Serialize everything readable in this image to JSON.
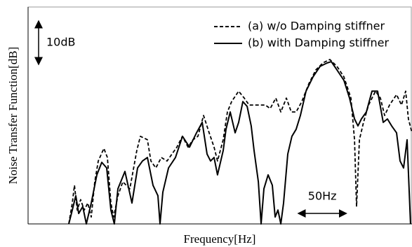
{
  "chart_data": {
    "type": "line",
    "xlabel": "Frequency[Hz]",
    "ylabel": "Noise Transfer Function[dB]",
    "xlim": [
      0,
      400
    ],
    "ylim": [
      0,
      50
    ],
    "legend": "top-right",
    "annotations": [
      {
        "text": "10dB",
        "value": 10,
        "axis": "y"
      },
      {
        "text": "50Hz",
        "value": 50,
        "axis": "x"
      }
    ],
    "series": [
      {
        "name": "(a) w/o Damping stiffner",
        "color": "#000000",
        "linestyle": "dashed",
        "x": [
          42.4,
          46.1,
          48.3,
          51.2,
          54.8,
          58.5,
          62.2,
          65.8,
          69.5,
          73.1,
          79,
          82.6,
          86.3,
          89.2,
          93.6,
          98.7,
          106,
          113.3,
          117,
          124.3,
          128,
          133.1,
          138.9,
          144.8,
          149.9,
          155,
          160.8,
          166.7,
          171.8,
          177,
          182.8,
          188.7,
          193.8,
          197.4,
          203.3,
          207.7,
          212.1,
          219.4,
          225.2,
          230.3,
          237.7,
          247.2,
          252.3,
          258.1,
          263.3,
          269.1,
          274.2,
          279.3,
          285.2,
          292.5,
          299.8,
          307.1,
          314.4,
          321.8,
          329.1,
          336.4,
          340.1,
          342.2,
          345.2,
          349.5,
          354.7,
          362,
          367.1,
          371.5,
          376.6,
          383.9,
          389,
          393.4,
          396.3,
          400
        ],
        "values": [
          0,
          4.8,
          8.9,
          3.2,
          5.6,
          3.2,
          4.8,
          1.6,
          9.7,
          14.5,
          17.4,
          15.3,
          4.8,
          1.6,
          6.5,
          9.7,
          8.1,
          16.9,
          20.2,
          19.4,
          14.5,
          12.9,
          15.3,
          14.5,
          16.1,
          17.7,
          20.2,
          17.7,
          19.4,
          20.2,
          25,
          21,
          17.7,
          14.5,
          19.4,
          25.8,
          28.2,
          30.6,
          29,
          27.4,
          27.4,
          27.4,
          26.6,
          29,
          25.8,
          29,
          25.8,
          25.8,
          28.2,
          32.3,
          35.5,
          37.1,
          37.9,
          36.3,
          33.9,
          29,
          19.4,
          4,
          19.4,
          23.4,
          27.4,
          30.6,
          29,
          25,
          27.4,
          29.8,
          27.4,
          30.6,
          24.2,
          21
        ]
      },
      {
        "name": "(b) with Damping stiffner",
        "color": "#000000",
        "linestyle": "solid",
        "x": [
          42.4,
          46.1,
          49.7,
          52.7,
          57,
          60.7,
          65.8,
          71.7,
          76.8,
          81.9,
          86.3,
          89.9,
          93.6,
          100.9,
          108.2,
          114.1,
          119.2,
          124.3,
          130.2,
          135.3,
          137.5,
          140.4,
          146.3,
          153.6,
          160.9,
          168.2,
          175.5,
          181.4,
          186.5,
          190.1,
          193.8,
          197.4,
          203.3,
          206.2,
          210.6,
          215.7,
          219.4,
          223.8,
          228.2,
          232.5,
          235.5,
          239.9,
          242.8,
          245.7,
          250.1,
          254.5,
          257.4,
          260.3,
          263.3,
          266.2,
          270.6,
          274.9,
          279.3,
          283.7,
          289.6,
          296.9,
          304.2,
          311.5,
          315.9,
          321.8,
          329.1,
          334.9,
          340.1,
          343.7,
          347.3,
          352.5,
          358.3,
          364.2,
          370,
          374.4,
          378.8,
          383.9,
          387.6,
          391.2,
          394.9,
          398.5
        ],
        "values": [
          0,
          3.2,
          6.5,
          2.4,
          4,
          0,
          4.8,
          11.3,
          14.2,
          12.9,
          3.2,
          0,
          8.1,
          12.1,
          4.8,
          12.9,
          14.5,
          15.3,
          8.9,
          6.5,
          0,
          7.3,
          12.9,
          15.3,
          20.2,
          17.7,
          21,
          23.4,
          16.1,
          14.5,
          15.3,
          11.3,
          16.9,
          21.8,
          25.8,
          21,
          23.4,
          28.2,
          27.1,
          22.6,
          16.9,
          9.7,
          0,
          8.1,
          11.3,
          8.9,
          1.6,
          3.2,
          0,
          4.8,
          16.1,
          20.2,
          21.8,
          25,
          30.6,
          33.9,
          36.3,
          37.1,
          37.4,
          35.5,
          33.1,
          29,
          24.2,
          22.6,
          24.2,
          25.8,
          30.6,
          30.6,
          23.4,
          24.2,
          22.6,
          21,
          14.5,
          12.9,
          19.4,
          0
        ]
      }
    ]
  }
}
